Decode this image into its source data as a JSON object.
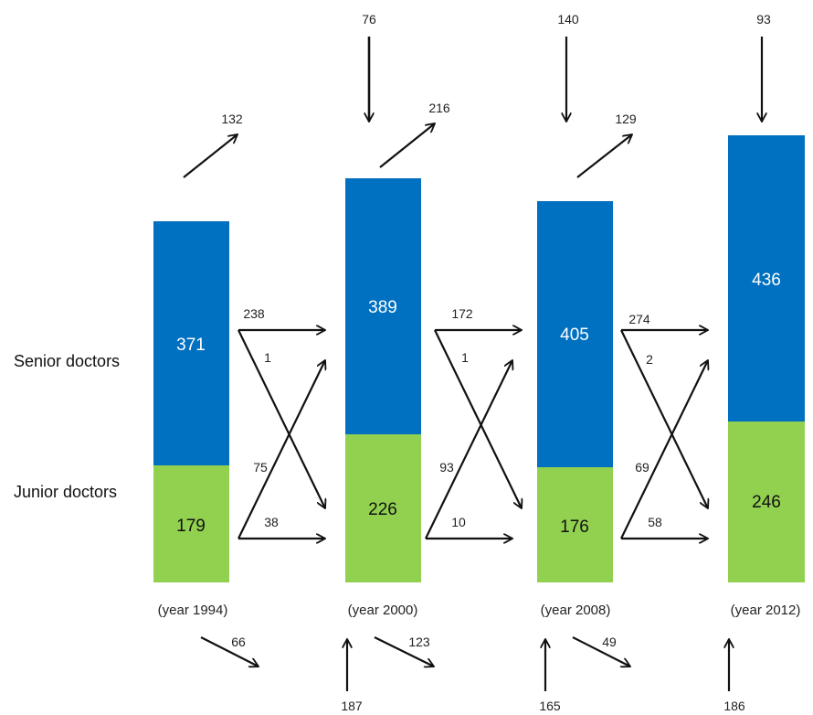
{
  "row_labels": {
    "senior": "Senior doctors",
    "junior": "Junior doctors"
  },
  "colors": {
    "senior": "#0070c0",
    "junior": "#92d050"
  },
  "years": [
    {
      "label": "(year 1994)",
      "senior": "371",
      "junior": "179",
      "entry": "",
      "exit_senior": "132",
      "exit_junior": "66",
      "entry_junior": ""
    },
    {
      "label": "(year 2000)",
      "senior": "389",
      "junior": "226",
      "entry": "76",
      "exit_senior": "216",
      "exit_junior": "123",
      "entry_junior": "187"
    },
    {
      "label": "(year 2008)",
      "senior": "405",
      "junior": "176",
      "entry": "140",
      "exit_senior": "129",
      "exit_junior": "49",
      "entry_junior": "165"
    },
    {
      "label": "(year 2012)",
      "senior": "436",
      "junior": "246",
      "entry": "93",
      "exit_senior": "",
      "exit_junior": "",
      "entry_junior": "186"
    }
  ],
  "transitions": [
    {
      "senior_stay": "238",
      "senior_to_junior": "1",
      "junior_to_senior": "75",
      "junior_stay": "38"
    },
    {
      "senior_stay": "172",
      "senior_to_junior": "1",
      "junior_to_senior": "93",
      "junior_stay": "10"
    },
    {
      "senior_stay": "274",
      "senior_to_junior": "2",
      "junior_to_senior": "69",
      "junior_stay": "58"
    }
  ]
}
